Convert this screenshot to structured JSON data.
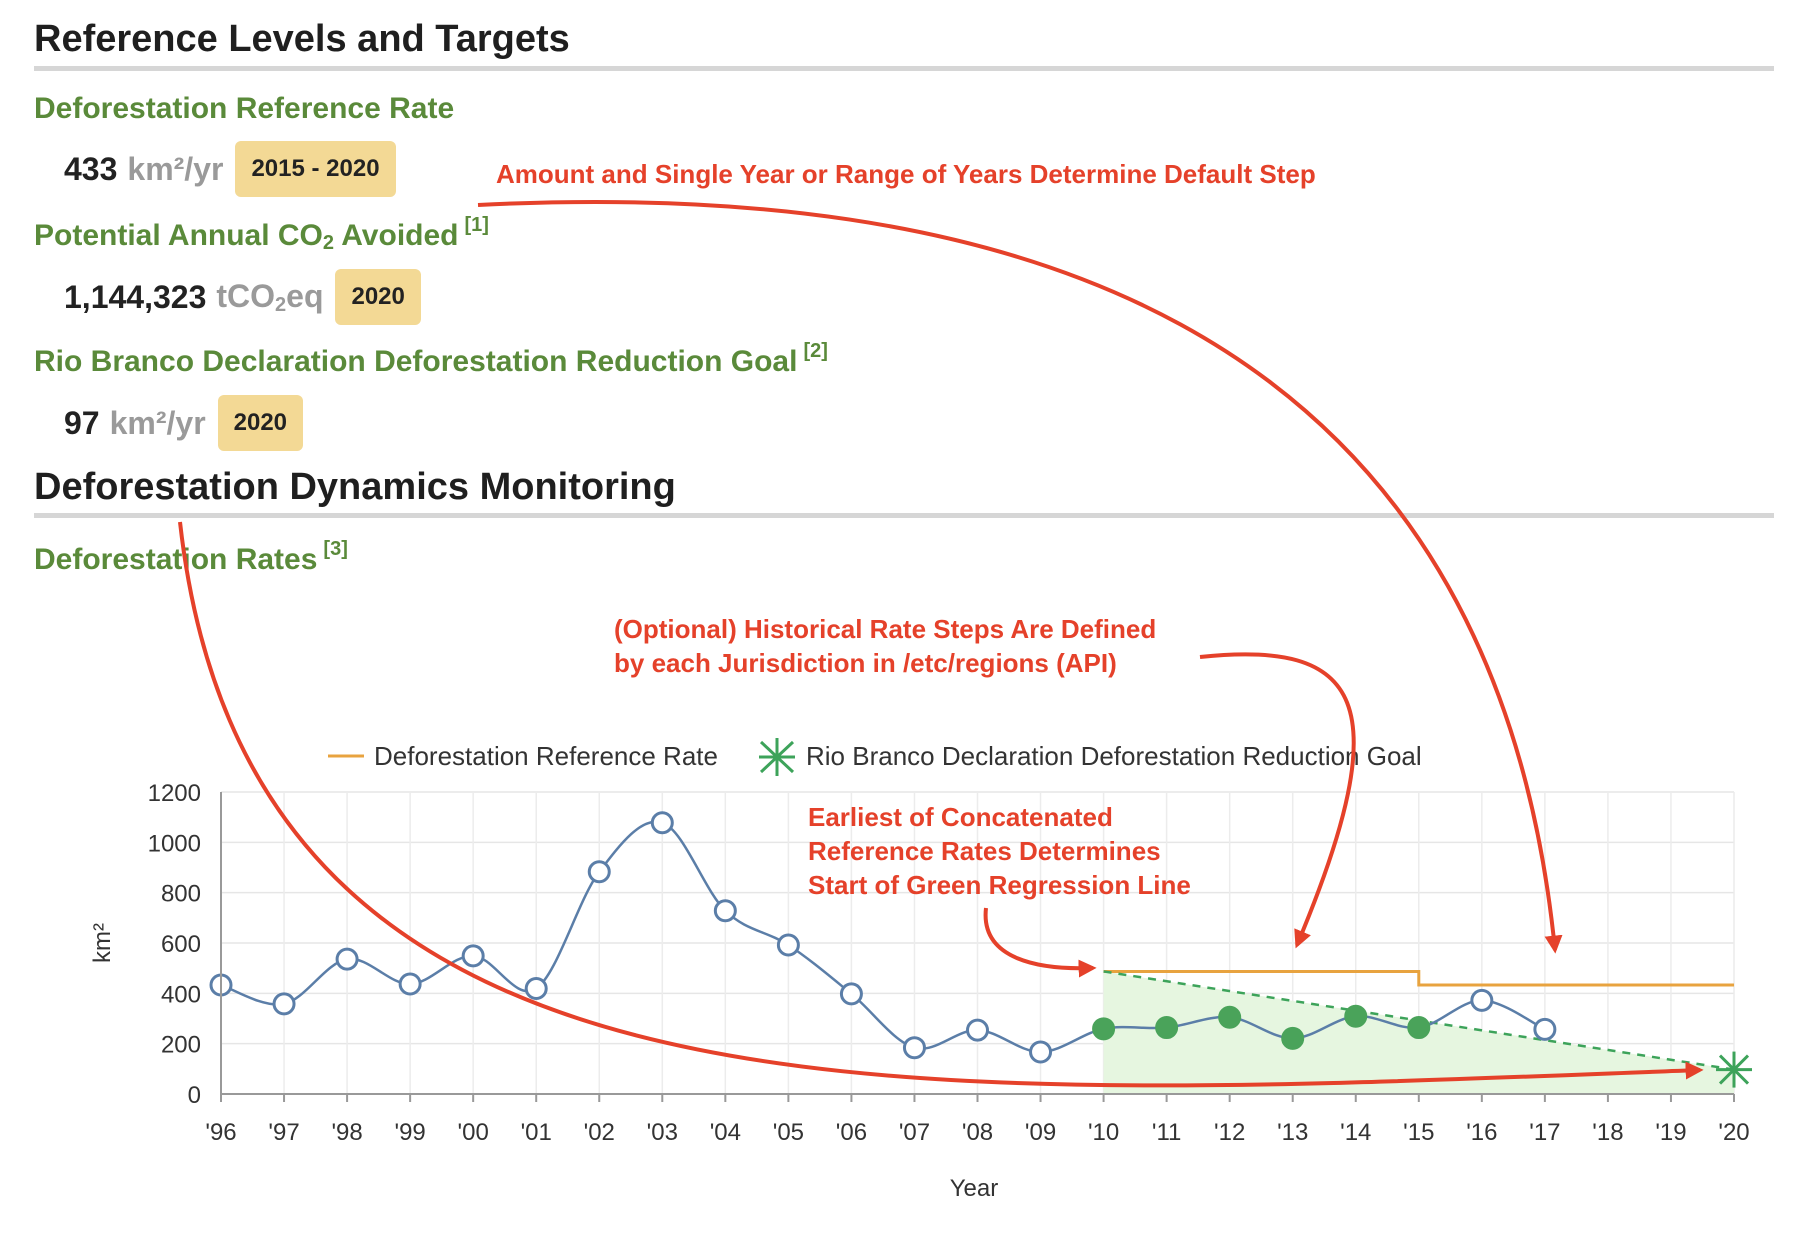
{
  "sections": {
    "reference_title": "Reference Levels and Targets",
    "monitoring_title": "Deforestation Dynamics Monitoring"
  },
  "metrics": {
    "ref_rate": {
      "heading": "Deforestation Reference Rate",
      "value": "433",
      "unit": "km²/yr",
      "badge": "2015 - 2020"
    },
    "co2": {
      "heading_pre": "Potential Annual CO",
      "heading_sub": "2",
      "heading_post": " Avoided",
      "footnote": "[1]",
      "value": "1,144,323",
      "unit_pre": "tCO",
      "unit_sub": "2",
      "unit_post": "eq",
      "badge": "2020"
    },
    "goal": {
      "heading": "Rio Branco Declaration Deforestation Reduction Goal",
      "footnote": "[2]",
      "value": "97",
      "unit": "km²/yr",
      "badge": "2020"
    },
    "rates": {
      "heading": "Deforestation Rates",
      "footnote": "[3]"
    }
  },
  "annotations": {
    "default_step": "Amount and Single Year or Range of Years Determine Default Step",
    "historical_line1": "(Optional) Historical Rate Steps Are Defined",
    "historical_line2": "by each Jurisdiction in /etc/regions (API)",
    "earliest_line1": "Earliest of Concatenated",
    "earliest_line2": "Reference Rates Determines",
    "earliest_line3": "Start of Green Regression Line"
  },
  "colors": {
    "heading_green": "#5a8a3a",
    "annotation_red": "#e5412a",
    "series_blue": "#5b7ea8",
    "reference_orange": "#e8a33f",
    "goal_green": "#3da35a",
    "point_green": "#4aa35a",
    "area_green": "#e6f6e0",
    "badge_yellow": "#f3d995"
  },
  "chart_data": {
    "type": "line",
    "xlabel": "Year",
    "ylabel": "km²",
    "ylim": [
      0,
      1200
    ],
    "yticks": [
      0,
      200,
      400,
      600,
      800,
      1000,
      1200
    ],
    "categories": [
      "'96",
      "'97",
      "'98",
      "'99",
      "'00",
      "'01",
      "'02",
      "'03",
      "'04",
      "'05",
      "'06",
      "'07",
      "'08",
      "'09",
      "'10",
      "'11",
      "'12",
      "'13",
      "'14",
      "'15",
      "'16",
      "'17",
      "'18",
      "'19",
      "'20"
    ],
    "grid": true,
    "legend_position": "top",
    "legend": [
      "Deforestation Reference Rate",
      "Rio Branco Declaration Deforestation Reduction Goal"
    ],
    "series": [
      {
        "name": "",
        "type": "line",
        "x": [
          "'96",
          "'97",
          "'98",
          "'99",
          "'00",
          "'01",
          "'02",
          "'03",
          "'04",
          "'05",
          "'06",
          "'07",
          "'08",
          "'09",
          "'10",
          "'11",
          "'12",
          "'13",
          "'14",
          "'15",
          "'16",
          "'17"
        ],
        "values": [
          433,
          358,
          536,
          437,
          549,
          419,
          883,
          1078,
          728,
          592,
          398,
          184,
          254,
          167,
          259,
          264,
          305,
          221,
          309,
          264,
          372,
          257
        ],
        "regression_highlight": [
          "'10",
          "'11",
          "'12",
          "'13",
          "'14",
          "'15"
        ]
      },
      {
        "name": "Deforestation Reference Rate",
        "type": "step",
        "segments": [
          {
            "from": "'10",
            "to": "'15",
            "value": 487
          },
          {
            "from": "'15",
            "to": "'20",
            "value": 433
          }
        ]
      },
      {
        "name": "",
        "type": "regression",
        "x": [
          "'10",
          "'20"
        ],
        "values": [
          487,
          97
        ]
      },
      {
        "name": "Rio Branco Declaration Deforestation Reduction Goal",
        "type": "scatter",
        "x": [
          "'20"
        ],
        "values": [
          97
        ]
      }
    ]
  }
}
